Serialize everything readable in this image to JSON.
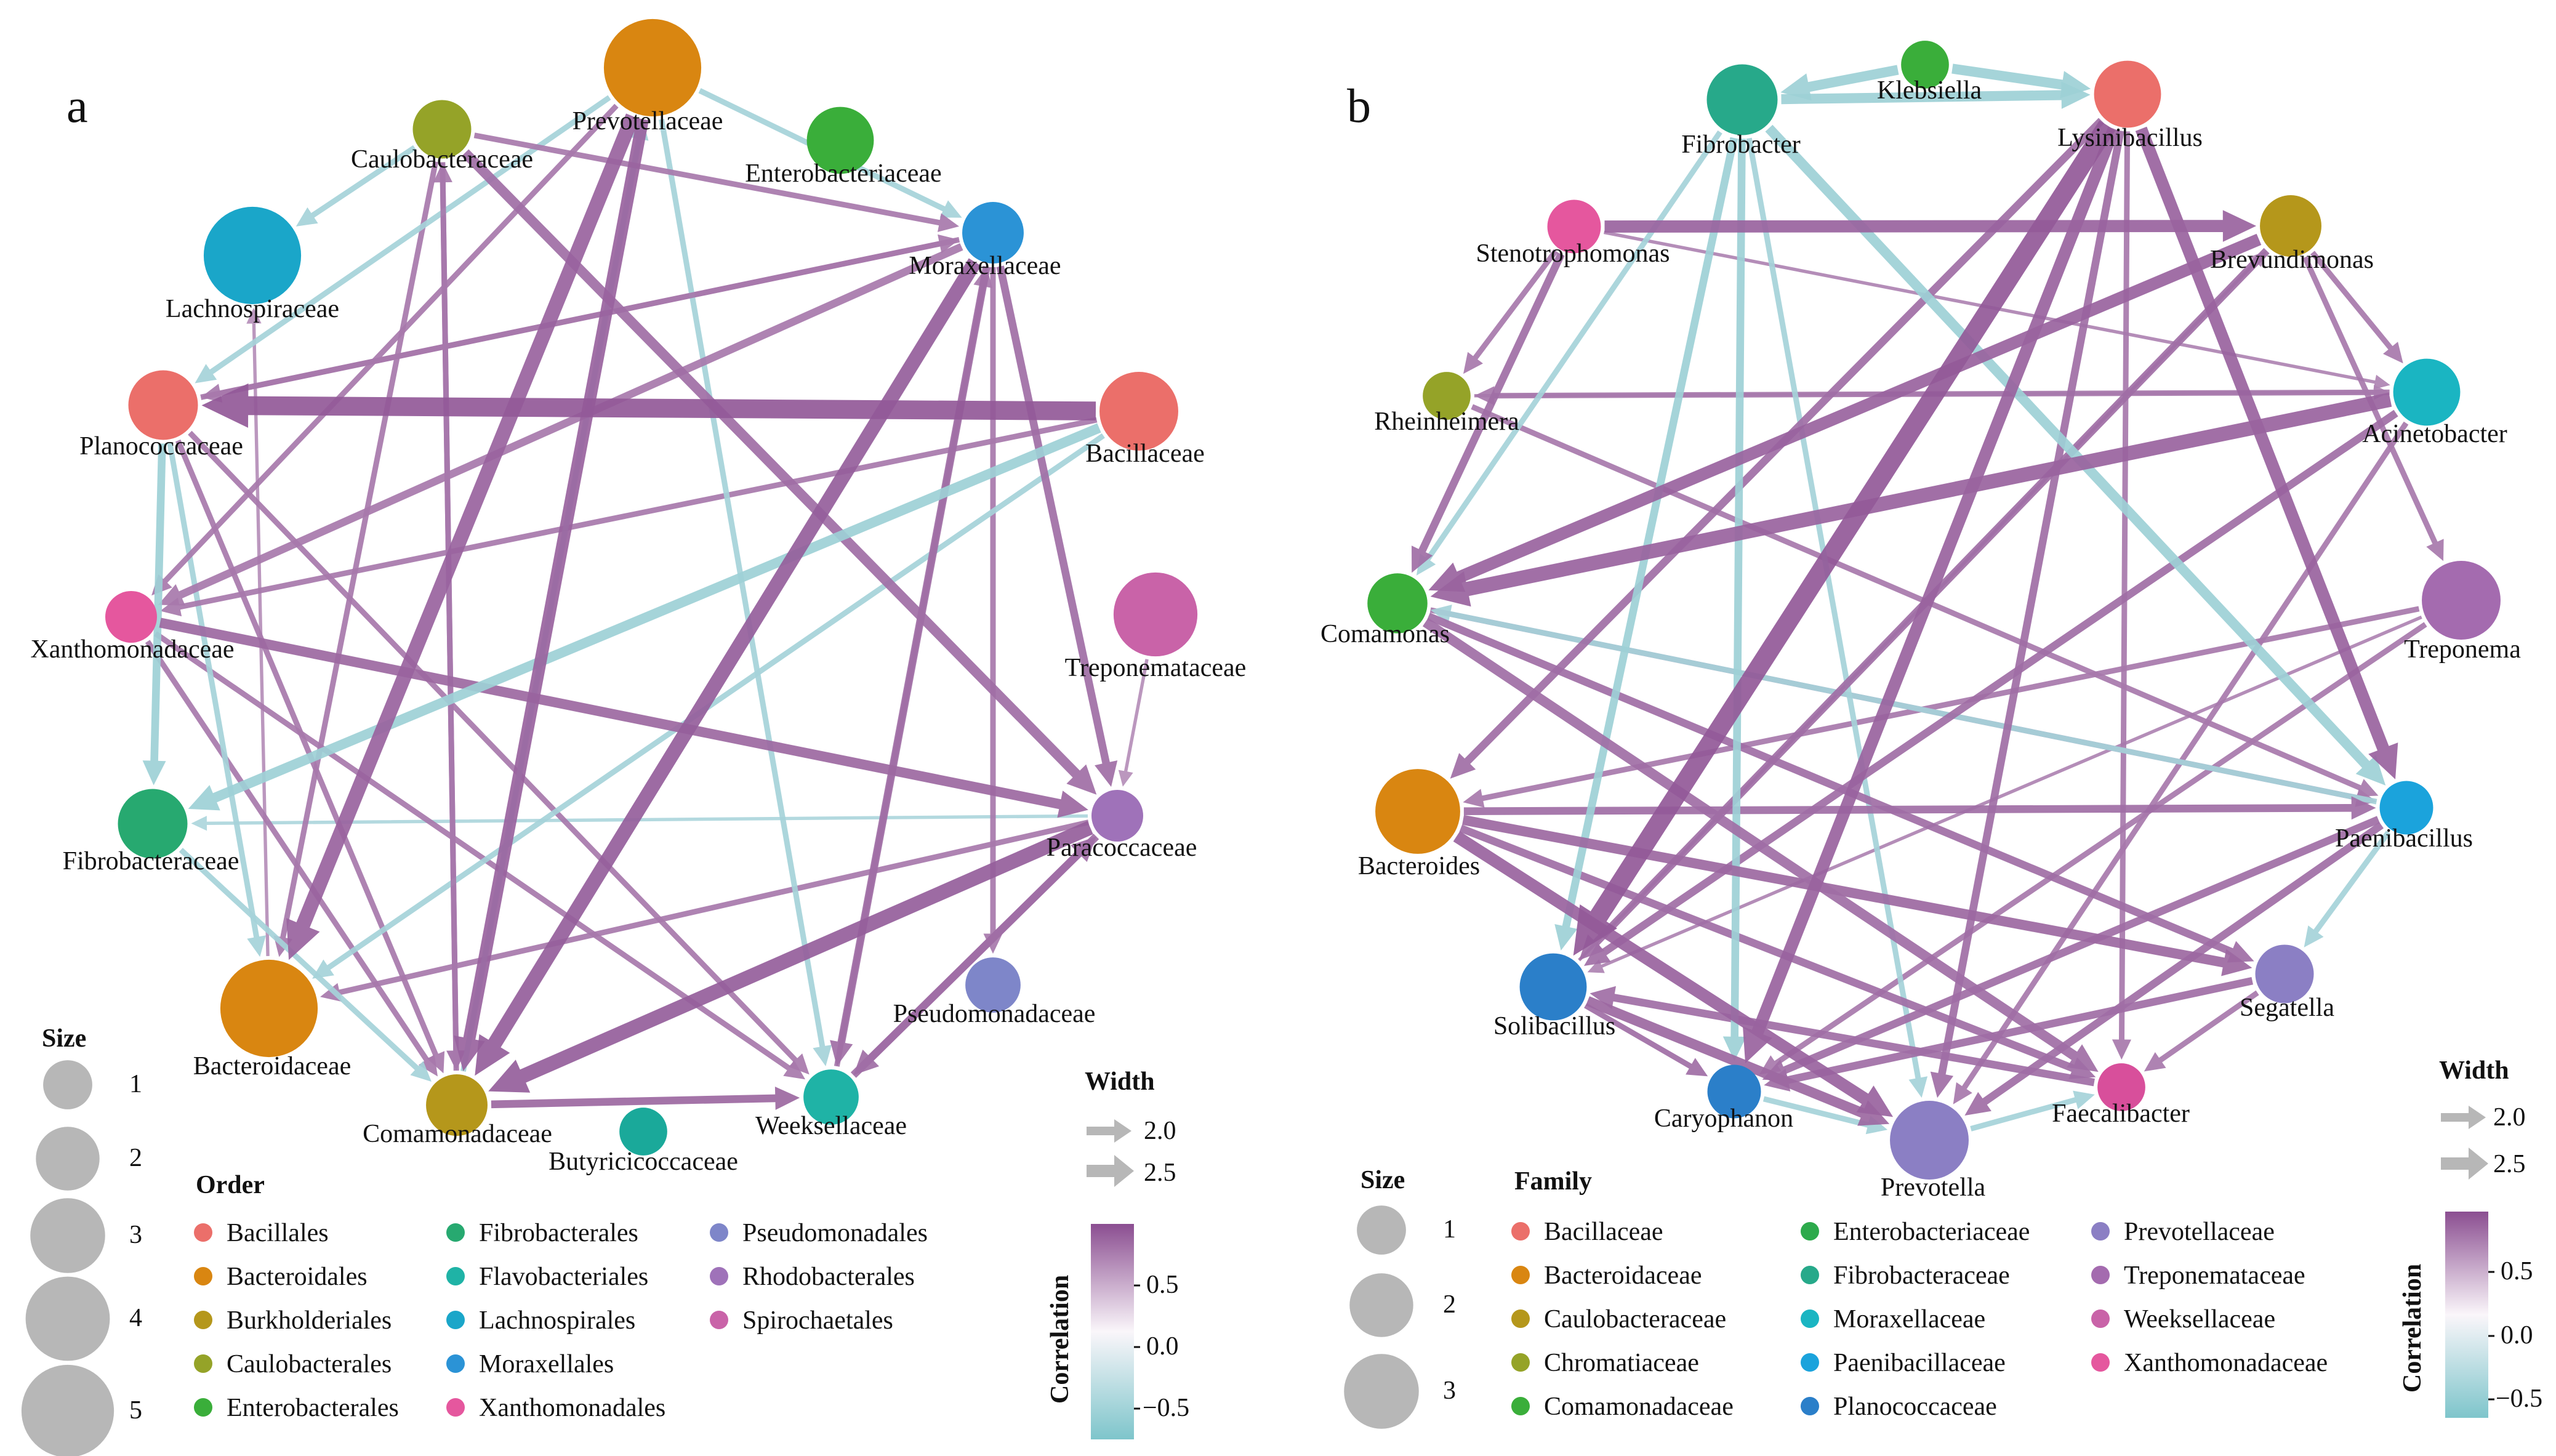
{
  "panels": [
    {
      "letter": "a",
      "nodes": [
        {
          "name": "Prevotellaceae",
          "size": 5,
          "color": "#D98611"
        },
        {
          "name": "Enterobacteriaceae",
          "size": 2,
          "color": "#3AAE3A"
        },
        {
          "name": "Moraxellaceae",
          "size": 1.6,
          "color": "#2B93D6"
        },
        {
          "name": "Bacillaceae",
          "size": 3,
          "color": "#EB6F6A"
        },
        {
          "name": "Treponemataceae",
          "size": 3.5,
          "color": "#C963A8"
        },
        {
          "name": "Paracoccaceae",
          "size": 1,
          "color": "#9F72B9"
        },
        {
          "name": "Pseudomonadaceae",
          "size": 1.2,
          "color": "#7E86C9"
        },
        {
          "name": "Weeksellaceae",
          "size": 1.2,
          "color": "#1FB3A6"
        },
        {
          "name": "Butyricicoccaceae",
          "size": 0.8,
          "color": "#1AA99A"
        },
        {
          "name": "Comamonadaceae",
          "size": 1.6,
          "color": "#B5971B"
        },
        {
          "name": "Bacteroidaceae",
          "size": 5,
          "color": "#D98611"
        },
        {
          "name": "Fibrobacteraceae",
          "size": 2.2,
          "color": "#27A970"
        },
        {
          "name": "Xanthomonadaceae",
          "size": 1,
          "color": "#E5579E"
        },
        {
          "name": "Planococcaceae",
          "size": 2.2,
          "color": "#EB6F6A"
        },
        {
          "name": "Lachnospiraceae",
          "size": 5,
          "color": "#1AA6C9"
        },
        {
          "name": "Caulobacteraceae",
          "size": 1.4,
          "color": "#95A328"
        }
      ],
      "edges": [
        {
          "from": "Bacillaceae",
          "to": "Planococcaceae",
          "w": 2.6,
          "corr": 0.9
        },
        {
          "from": "Prevotellaceae",
          "to": "Bacteroidaceae",
          "w": 2.4,
          "corr": 0.8
        },
        {
          "from": "Prevotellaceae",
          "to": "Comamonadaceae",
          "w": 2.3,
          "corr": 0.8
        },
        {
          "from": "Caulobacteraceae",
          "to": "Comamonadaceae",
          "w": 2.0,
          "corr": 0.7
        },
        {
          "from": "Caulobacteraceae",
          "to": "Paracoccaceae",
          "w": 2.2,
          "corr": 0.7
        },
        {
          "from": "Moraxellaceae",
          "to": "Comamonadaceae",
          "w": 2.4,
          "corr": 0.85
        },
        {
          "from": "Moraxellaceae",
          "to": "Weeksellaceae",
          "w": 2.1,
          "corr": 0.7
        },
        {
          "from": "Moraxellaceae",
          "to": "Paracoccaceae",
          "w": 2.1,
          "corr": 0.7
        },
        {
          "from": "Moraxellaceae",
          "to": "Pseudomonadaceae",
          "w": 2.0,
          "corr": 0.6
        },
        {
          "from": "Moraxellaceae",
          "to": "Xanthomonadaceae",
          "w": 2.1,
          "corr": 0.6
        },
        {
          "from": "Moraxellaceae",
          "to": "Planococcaceae",
          "w": 2.0,
          "corr": 0.6
        },
        {
          "from": "Paracoccaceae",
          "to": "Comamonadaceae",
          "w": 2.4,
          "corr": 0.85
        },
        {
          "from": "Paracoccaceae",
          "to": "Weeksellaceae",
          "w": 2.1,
          "corr": 0.7
        },
        {
          "from": "Paracoccaceae",
          "to": "Bacteroidaceae",
          "w": 2.0,
          "corr": 0.6
        },
        {
          "from": "Xanthomonadaceae",
          "to": "Paracoccaceae",
          "w": 2.2,
          "corr": 0.75
        },
        {
          "from": "Xanthomonadaceae",
          "to": "Comamonadaceae",
          "w": 2.0,
          "corr": 0.6
        },
        {
          "from": "Xanthomonadaceae",
          "to": "Weeksellaceae",
          "w": 2.0,
          "corr": 0.6
        },
        {
          "from": "Planococcaceae",
          "to": "Fibrobacteraceae",
          "w": 2.1,
          "corr": -0.6
        },
        {
          "from": "Planococcaceae",
          "to": "Comamonadaceae",
          "w": 2.0,
          "corr": 0.6
        },
        {
          "from": "Planococcaceae",
          "to": "Weeksellaceae",
          "w": 2.0,
          "corr": 0.6
        },
        {
          "from": "Planococcaceae",
          "to": "Bacteroidaceae",
          "w": 2.0,
          "corr": -0.5
        },
        {
          "from": "Comamonadaceae",
          "to": "Weeksellaceae",
          "w": 2.1,
          "corr": 0.75
        },
        {
          "from": "Weeksellaceae",
          "to": "Paracoccaceae",
          "w": 2.1,
          "corr": 0.7
        },
        {
          "from": "Bacillaceae",
          "to": "Fibrobacteraceae",
          "w": 2.2,
          "corr": -0.6
        },
        {
          "from": "Bacillaceae",
          "to": "Bacteroidaceae",
          "w": 2.0,
          "corr": -0.5
        },
        {
          "from": "Bacillaceae",
          "to": "Xanthomonadaceae",
          "w": 2.0,
          "corr": 0.6
        },
        {
          "from": "Caulobacteraceae",
          "to": "Lachnospiraceae",
          "w": 2.0,
          "corr": -0.5
        },
        {
          "from": "Caulobacteraceae",
          "to": "Bacteroidaceae",
          "w": 2.0,
          "corr": 0.6
        },
        {
          "from": "Prevotellaceae",
          "to": "Planococcaceae",
          "w": 2.0,
          "corr": -0.5
        },
        {
          "from": "Prevotellaceae",
          "to": "Moraxellaceae",
          "w": 2.0,
          "corr": -0.5
        },
        {
          "from": "Prevotellaceae",
          "to": "Weeksellaceae",
          "w": 2.0,
          "corr": -0.5
        },
        {
          "from": "Prevotellaceae",
          "to": "Xanthomonadaceae",
          "w": 2.0,
          "corr": 0.6
        },
        {
          "from": "Comamonadaceae",
          "to": "Caulobacteraceae",
          "w": 2.0,
          "corr": 0.6
        },
        {
          "from": "Comamonadaceae",
          "to": "Prevotellaceae",
          "w": 2.0,
          "corr": -0.5
        },
        {
          "from": "Fibrobacteraceae",
          "to": "Comamonadaceae",
          "w": 2.0,
          "corr": -0.5
        },
        {
          "from": "Paracoccaceae",
          "to": "Fibrobacteraceae",
          "w": 1.9,
          "corr": -0.4
        },
        {
          "from": "Weeksellaceae",
          "to": "Moraxellaceae",
          "w": 2.0,
          "corr": 0.6
        },
        {
          "from": "Treponemataceae",
          "to": "Paracoccaceae",
          "w": 1.9,
          "corr": 0.4
        },
        {
          "from": "Caulobacteraceae",
          "to": "Moraxellaceae",
          "w": 2.0,
          "corr": 0.6
        },
        {
          "from": "Planococcaceae",
          "to": "Moraxellaceae",
          "w": 2.0,
          "corr": 0.6
        },
        {
          "from": "Bacteroidaceae",
          "to": "Lachnospiraceae",
          "w": 1.9,
          "corr": 0.4
        }
      ]
    },
    {
      "letter": "b",
      "nodes": [
        {
          "name": "Klebsiella",
          "size": 0.8,
          "color": "#3AAE3A"
        },
        {
          "name": "Lysinibacillus",
          "size": 2,
          "color": "#EB6F6A"
        },
        {
          "name": "Brevundimonas",
          "size": 1.6,
          "color": "#B5971B"
        },
        {
          "name": "Acinetobacter",
          "size": 2,
          "color": "#1AB5C2"
        },
        {
          "name": "Treponema",
          "size": 3,
          "color": "#A46BAF"
        },
        {
          "name": "Paenibacillus",
          "size": 1.1,
          "color": "#1BA3DC"
        },
        {
          "name": "Segatella",
          "size": 1.4,
          "color": "#8B7FC4"
        },
        {
          "name": "Faecalibacter",
          "size": 0.8,
          "color": "#D84F9B"
        },
        {
          "name": "Prevotella",
          "size": 3,
          "color": "#8B7FC4"
        },
        {
          "name": "Caryophanon",
          "size": 1.1,
          "color": "#2B7FC9"
        },
        {
          "name": "Solibacillus",
          "size": 2,
          "color": "#2B7FC9"
        },
        {
          "name": "Bacteroides",
          "size": 3.6,
          "color": "#D98611"
        },
        {
          "name": "Comamonas",
          "size": 1.5,
          "color": "#3AAE3A"
        },
        {
          "name": "Rheinheimera",
          "size": 0.8,
          "color": "#95A328"
        },
        {
          "name": "Stenotrophomonas",
          "size": 1.1,
          "color": "#E5579E"
        },
        {
          "name": "Fibrobacter",
          "size": 2.3,
          "color": "#27A98A"
        }
      ],
      "edges": [
        {
          "from": "Lysinibacillus",
          "to": "Solibacillus",
          "w": 2.6,
          "corr": 0.9
        },
        {
          "from": "Lysinibacillus",
          "to": "Caryophanon",
          "w": 2.3,
          "corr": 0.8
        },
        {
          "from": "Lysinibacillus",
          "to": "Paenibacillus",
          "w": 2.3,
          "corr": 0.8
        },
        {
          "from": "Lysinibacillus",
          "to": "Bacteroides",
          "w": 2.1,
          "corr": 0.7
        },
        {
          "from": "Lysinibacillus",
          "to": "Prevotella",
          "w": 2.1,
          "corr": 0.7
        },
        {
          "from": "Fibrobacter",
          "to": "Lysinibacillus",
          "w": 2.2,
          "corr": -0.6
        },
        {
          "from": "Stenotrophomonas",
          "to": "Brevundimonas",
          "w": 2.3,
          "corr": 0.8
        },
        {
          "from": "Stenotrophomonas",
          "to": "Comamonas",
          "w": 2.1,
          "corr": 0.7
        },
        {
          "from": "Stenotrophomonas",
          "to": "Rheinheimera",
          "w": 2.0,
          "corr": 0.6
        },
        {
          "from": "Acinetobacter",
          "to": "Comamonas",
          "w": 2.4,
          "corr": 0.8
        },
        {
          "from": "Acinetobacter",
          "to": "Rheinheimera",
          "w": 2.0,
          "corr": 0.6
        },
        {
          "from": "Brevundimonas",
          "to": "Comamonas",
          "w": 2.3,
          "corr": 0.8
        },
        {
          "from": "Brevundimonas",
          "to": "Acinetobacter",
          "w": 2.0,
          "corr": 0.6
        },
        {
          "from": "Brevundimonas",
          "to": "Treponema",
          "w": 2.0,
          "corr": 0.6
        },
        {
          "from": "Brevundimonas",
          "to": "Solibacillus",
          "w": 2.1,
          "corr": 0.7
        },
        {
          "from": "Bacteroides",
          "to": "Prevotella",
          "w": 2.3,
          "corr": 0.8
        },
        {
          "from": "Bacteroides",
          "to": "Segatella",
          "w": 2.2,
          "corr": 0.75
        },
        {
          "from": "Bacteroides",
          "to": "Paenibacillus",
          "w": 2.1,
          "corr": 0.7
        },
        {
          "from": "Bacteroides",
          "to": "Faecalibacter",
          "w": 2.1,
          "corr": 0.7
        },
        {
          "from": "Comamonas",
          "to": "Faecalibacter",
          "w": 2.2,
          "corr": 0.7
        },
        {
          "from": "Comamonas",
          "to": "Segatella",
          "w": 2.1,
          "corr": 0.7
        },
        {
          "from": "Segatella",
          "to": "Caryophanon",
          "w": 2.1,
          "corr": 0.7
        },
        {
          "from": "Segatella",
          "to": "Faecalibacter",
          "w": 2.0,
          "corr": 0.6
        },
        {
          "from": "Solibacillus",
          "to": "Prevotella",
          "w": 2.2,
          "corr": 0.75
        },
        {
          "from": "Solibacillus",
          "to": "Caryophanon",
          "w": 2.0,
          "corr": 0.7
        },
        {
          "from": "Faecalibacter",
          "to": "Solibacillus",
          "w": 2.1,
          "corr": 0.7
        },
        {
          "from": "Paenibacillus",
          "to": "Prevotella",
          "w": 2.1,
          "corr": 0.7
        },
        {
          "from": "Paenibacillus",
          "to": "Caryophanon",
          "w": 2.1,
          "corr": 0.7
        },
        {
          "from": "Acinetobacter",
          "to": "Solibacillus",
          "w": 2.1,
          "corr": 0.7
        },
        {
          "from": "Acinetobacter",
          "to": "Prevotella",
          "w": 2.0,
          "corr": 0.6
        },
        {
          "from": "Treponema",
          "to": "Caryophanon",
          "w": 2.0,
          "corr": 0.6
        },
        {
          "from": "Treponema",
          "to": "Bacteroides",
          "w": 2.0,
          "corr": 0.6
        },
        {
          "from": "Rheinheimera",
          "to": "Paenibacillus",
          "w": 2.0,
          "corr": 0.6
        },
        {
          "from": "Comamonas",
          "to": "Paenibacillus",
          "w": 2.0,
          "corr": 0.6
        },
        {
          "from": "Fibrobacter",
          "to": "Caryophanon",
          "w": 2.1,
          "corr": -0.6
        },
        {
          "from": "Fibrobacter",
          "to": "Paenibacillus",
          "w": 2.2,
          "corr": -0.6
        },
        {
          "from": "Fibrobacter",
          "to": "Comamonas",
          "w": 2.0,
          "corr": -0.5
        },
        {
          "from": "Fibrobacter",
          "to": "Solibacillus",
          "w": 2.1,
          "corr": -0.6
        },
        {
          "from": "Fibrobacter",
          "to": "Prevotella",
          "w": 2.0,
          "corr": -0.5
        },
        {
          "from": "Lysinibacillus",
          "to": "Faecalibacter",
          "w": 2.0,
          "corr": 0.6
        },
        {
          "from": "Klebsiella",
          "to": "Fibrobacter",
          "w": 2.2,
          "corr": -0.6
        },
        {
          "from": "Klebsiella",
          "to": "Lysinibacillus",
          "w": 2.2,
          "corr": -0.6
        },
        {
          "from": "Paenibacillus",
          "to": "Segatella",
          "w": 2.0,
          "corr": -0.5
        },
        {
          "from": "Paenibacillus",
          "to": "Comamonas",
          "w": 2.0,
          "corr": -0.5
        },
        {
          "from": "Prevotella",
          "to": "Faecalibacter",
          "w": 2.0,
          "corr": -0.5
        },
        {
          "from": "Caryophanon",
          "to": "Prevotella",
          "w": 2.0,
          "corr": -0.5
        },
        {
          "from": "Stenotrophomonas",
          "to": "Acinetobacter",
          "w": 1.9,
          "corr": 0.5
        },
        {
          "from": "Rheinheimera",
          "to": "Acinetobacter",
          "w": 1.9,
          "corr": 0.5
        },
        {
          "from": "Solibacillus",
          "to": "Brevundimonas",
          "w": 1.9,
          "corr": 0.5
        },
        {
          "from": "Treponema",
          "to": "Solibacillus",
          "w": 1.9,
          "corr": 0.5
        }
      ]
    }
  ],
  "legend_a": {
    "size_title": "Size",
    "sizes": [
      "1",
      "2",
      "3",
      "4",
      "5"
    ],
    "group_title": "Order",
    "groups": [
      {
        "label": "Bacillales",
        "color": "#EB6F6A"
      },
      {
        "label": "Bacteroidales",
        "color": "#D98611"
      },
      {
        "label": "Burkholderiales",
        "color": "#B5971B"
      },
      {
        "label": "Caulobacterales",
        "color": "#95A328"
      },
      {
        "label": "Enterobacterales",
        "color": "#3AAE3A"
      },
      {
        "label": "Fibrobacterales",
        "color": "#27A970"
      },
      {
        "label": "Flavobacteriales",
        "color": "#1FB3A6"
      },
      {
        "label": "Lachnospirales",
        "color": "#1AA6C9"
      },
      {
        "label": "Moraxellales",
        "color": "#2B93D6"
      },
      {
        "label": "Xanthomonadales",
        "color": "#E5579E"
      },
      {
        "label": "Pseudomonadales",
        "color": "#7E86C9"
      },
      {
        "label": "Rhodobacterales",
        "color": "#9F72B9"
      },
      {
        "label": "Spirochaetales",
        "color": "#C963A8"
      }
    ],
    "width_title": "Width",
    "widths": [
      "2.0",
      "2.5"
    ],
    "corr_title": "Correlation",
    "corr_ticks": [
      "0.5",
      "0.0",
      "−0.5"
    ]
  },
  "legend_b": {
    "size_title": "Size",
    "sizes": [
      "1",
      "2",
      "3"
    ],
    "group_title": "Family",
    "groups": [
      {
        "label": "Bacillaceae",
        "color": "#EB6F6A"
      },
      {
        "label": "Bacteroidaceae",
        "color": "#D98611"
      },
      {
        "label": "Caulobacteraceae",
        "color": "#B5971B"
      },
      {
        "label": "Chromatiaceae",
        "color": "#95A328"
      },
      {
        "label": "Comamonadaceae",
        "color": "#3AAE3A"
      },
      {
        "label": "Enterobacteriaceae",
        "color": "#2DAA4C"
      },
      {
        "label": "Fibrobacteraceae",
        "color": "#27A98A"
      },
      {
        "label": "Moraxellaceae",
        "color": "#1AB5C2"
      },
      {
        "label": "Paenibacillaceae",
        "color": "#1BA3DC"
      },
      {
        "label": "Planococcaceae",
        "color": "#2B7FC9"
      },
      {
        "label": "Prevotellaceae",
        "color": "#8B7FC4"
      },
      {
        "label": "Treponemataceae",
        "color": "#A46BAF"
      },
      {
        "label": "Weeksellaceae",
        "color": "#C963A8"
      },
      {
        "label": "Xanthomonadaceae",
        "color": "#E5579E"
      }
    ],
    "width_title": "Width",
    "widths": [
      "2.0",
      "2.5"
    ],
    "corr_title": "Correlation",
    "corr_ticks": [
      "0.5",
      "0.0",
      "−0.5"
    ]
  },
  "colors": {
    "positive": "#8B4E91",
    "negative": "#7EC5CB",
    "neutral": "#F6F1F6",
    "legend_gray": "#B7B7B7"
  }
}
